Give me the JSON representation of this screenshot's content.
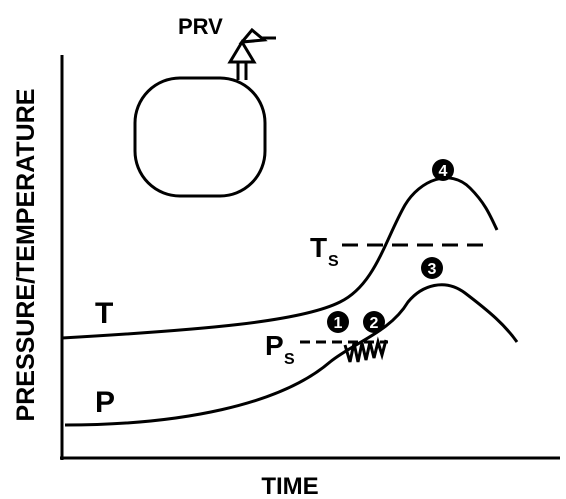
{
  "labels": {
    "prv": "PRV",
    "y_axis": "PRESSURE/TEMPERATURE",
    "x_axis": "TIME",
    "t_curve": "T",
    "p_curve": "P",
    "ts": {
      "main": "T",
      "sub": "S"
    },
    "ps": {
      "main": "P",
      "sub": "S"
    }
  },
  "markers": [
    "1",
    "2",
    "3",
    "4"
  ]
}
